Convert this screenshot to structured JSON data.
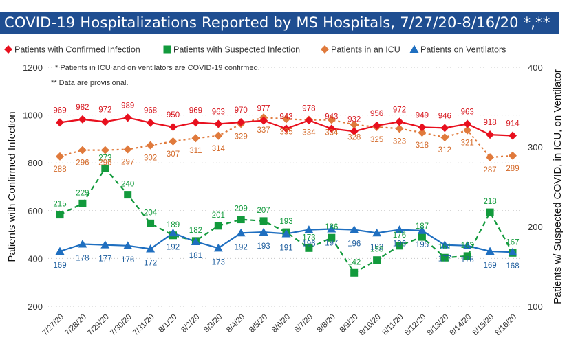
{
  "title": "COVID-19 Hospitalizations Reported by MS Hospitals, 7/27/20-8/16/20 *,**",
  "colors": {
    "title_bg": "#1f4e91",
    "confirmed": "#e8101e",
    "suspected": "#129a3c",
    "icu": "#e07a3c",
    "ventilators": "#1f6fc0",
    "confirmed_label": "#d71920",
    "icu_label": "#d46a2a",
    "suspected_label": "#129a3c",
    "ventilators_label": "#1f5f9f"
  },
  "notes": [
    "* Patients in ICU and on ventilators are COVID-19 confirmed.",
    "** Data are provisional."
  ],
  "chart_data": {
    "type": "line",
    "title": "COVID-19 Hospitalizations Reported by MS Hospitals, 7/27/20-8/16/20 *,**",
    "categories": [
      "7/27/20",
      "7/28/20",
      "7/29/20",
      "7/30/20",
      "7/31/20",
      "8/1/20",
      "8/2/20",
      "8/3/20",
      "8/4/20",
      "8/5/20",
      "8/6/20",
      "8/7/20",
      "8/8/20",
      "8/9/20",
      "8/10/20",
      "8/11/20",
      "8/12/20",
      "8/13/20",
      "8/14/20",
      "8/15/20",
      "8/16/20"
    ],
    "ylabel": "Patients with Confirmed Infection",
    "y2label": "Patients w/ Suspected COVID, in ICU, on Ventilator",
    "ylim": [
      200,
      1200
    ],
    "yticks": [
      200,
      400,
      600,
      800,
      1000,
      1200
    ],
    "y2lim": [
      100,
      400
    ],
    "y2ticks": [
      100,
      200,
      300,
      400
    ],
    "legend_position": "top",
    "grid": "horizontal dotted",
    "series": [
      {
        "name": "Patients with Confirmed Infection",
        "axis": "left",
        "marker": "diamond",
        "style": "solid",
        "color": "#e8101e",
        "values": [
          969,
          982,
          972,
          989,
          968,
          950,
          969,
          963,
          970,
          977,
          943,
          978,
          943,
          932,
          956,
          972,
          949,
          946,
          963,
          918,
          914
        ]
      },
      {
        "name": "Patients with Suspected Infection",
        "axis": "right",
        "marker": "square",
        "style": "dashed",
        "color": "#129a3c",
        "values": [
          215,
          229,
          273,
          240,
          204,
          189,
          182,
          201,
          209,
          207,
          193,
          173,
          186,
          142,
          158,
          176,
          187,
          161,
          163,
          218,
          167
        ]
      },
      {
        "name": "Patients in an ICU",
        "axis": "right",
        "marker": "diamond",
        "style": "dotted",
        "color": "#e07a3c",
        "values": [
          288,
          296,
          296,
          297,
          302,
          307,
          311,
          314,
          329,
          337,
          335,
          334,
          334,
          328,
          325,
          323,
          318,
          312,
          321,
          287,
          289
        ]
      },
      {
        "name": "Patients on Ventilators",
        "axis": "right",
        "marker": "triangle",
        "style": "solid",
        "color": "#1f6fc0",
        "values": [
          169,
          178,
          177,
          176,
          172,
          192,
          181,
          173,
          192,
          193,
          191,
          196,
          197,
          196,
          192,
          196,
          195,
          177,
          176,
          169,
          168
        ]
      }
    ],
    "data_labels": {
      "Patients with Confirmed Infection": [
        "969",
        "982",
        "972",
        "989",
        "968",
        "950",
        "969",
        "963",
        "970",
        "977",
        "943",
        "978",
        "943",
        "932",
        "956",
        "972",
        "949",
        "946",
        "963",
        "918",
        "914"
      ],
      "Patients with Suspected Infection": [
        "215",
        "229",
        "273",
        "240",
        "204",
        "189",
        "182",
        "201",
        "209",
        "207",
        "193",
        "173",
        "186",
        "142",
        "158",
        "176",
        "187",
        "161",
        "163",
        "218",
        "167"
      ],
      "Patients in an ICU": [
        "288",
        "296",
        "296",
        "297",
        "302",
        "307",
        "311",
        "314",
        "329",
        "337",
        "335",
        "334",
        "334",
        "328",
        "325",
        "323",
        "318",
        "312",
        "321",
        "287",
        "289"
      ],
      "Patients on Ventilators": [
        "169",
        "178",
        "177",
        "176",
        "172",
        "192",
        "181",
        "173",
        "192",
        "193",
        "191",
        "196",
        "197",
        "196",
        "192",
        "196",
        "195",
        "177",
        "176",
        "169",
        "168"
      ]
    }
  }
}
